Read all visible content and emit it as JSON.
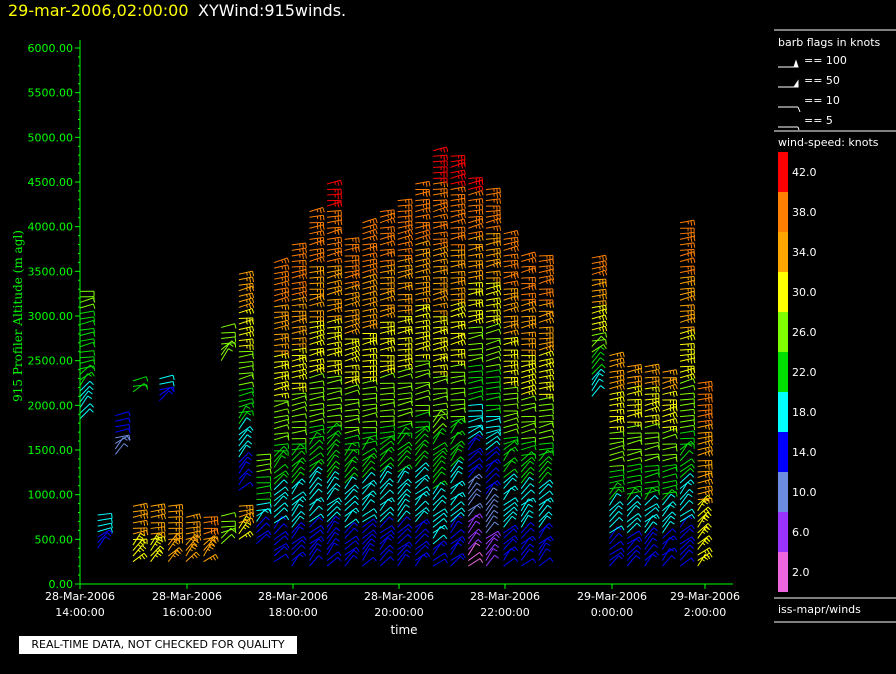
{
  "header": {
    "datetime": "29-mar-2006,02:00:00",
    "title": "XYWind:915winds."
  },
  "disclaimer": "REAL-TIME DATA, NOT CHECKED FOR QUALITY",
  "legend": {
    "barb_title": "barb flags in knots",
    "barbs": [
      {
        "label": "== 100",
        "knots": 100
      },
      {
        "label": "== 50",
        "knots": 50
      },
      {
        "label": "== 10",
        "knots": 10
      },
      {
        "label": "== 5",
        "knots": 5
      }
    ],
    "speed_title": "wind-speed: knots",
    "source": "iss-mapr/winds"
  },
  "colors": {
    "axis": "#00ff00",
    "background": "#000000",
    "speed_scale": [
      "#ff0000",
      "#ff7f00",
      "#ffa500",
      "#ffff00",
      "#80ff00",
      "#00e000",
      "#00ffff",
      "#0000ff",
      "#6b8ce0",
      "#9933ff",
      "#ee66dd"
    ]
  },
  "chart_data": {
    "type": "wind-barb profile",
    "xlabel": "time",
    "ylabel": "915 Profiler Altitude (m agl)",
    "ylim": [
      0,
      6200
    ],
    "yticks": [
      "0.00",
      "500.00",
      "1000.00",
      "1500.00",
      "2000.00",
      "2500.00",
      "3000.00",
      "3500.00",
      "4000.00",
      "4500.00",
      "5000.00",
      "5500.00",
      "6000.00"
    ],
    "xlim": [
      "28-Mar-2006 14:00:00",
      "29-Mar-2006 02:20:00"
    ],
    "xticks": [
      {
        "date": "28-Mar-2006",
        "time": "14:00:00"
      },
      {
        "date": "28-Mar-2006",
        "time": "16:00:00"
      },
      {
        "date": "28-Mar-2006",
        "time": "18:00:00"
      },
      {
        "date": "28-Mar-2006",
        "time": "20:00:00"
      },
      {
        "date": "28-Mar-2006",
        "time": "22:00:00"
      },
      {
        "date": "29-Mar-2006",
        "time": "0:00:00"
      },
      {
        "date": "29-Mar-2006",
        "time": "2:00:00"
      }
    ],
    "colorbar": [
      {
        "label": "42.0",
        "color": "#ff0000"
      },
      {
        "label": "38.0",
        "color": "#ff7f00"
      },
      {
        "label": "34.0",
        "color": "#ffa500"
      },
      {
        "label": "30.0",
        "color": "#ffff00"
      },
      {
        "label": "26.0",
        "color": "#80ff00"
      },
      {
        "label": "22.0",
        "color": "#00e000"
      },
      {
        "label": "18.0",
        "color": "#00ffff"
      },
      {
        "label": "14.0",
        "color": "#0000ff"
      },
      {
        "label": "10.0",
        "color": "#6b8ce0"
      },
      {
        "label": "6.0",
        "color": "#9933ff"
      },
      {
        "label": "2.0",
        "color": "#ee66dd"
      }
    ],
    "profiles": [
      {
        "time": "14:00",
        "bottom": 1850,
        "top": 3300,
        "low_speed": 20,
        "high_speed": 27
      },
      {
        "time": "14:20",
        "bottom": 400,
        "top": 800,
        "low_speed": 16,
        "high_speed": 20
      },
      {
        "time": "14:40",
        "bottom": 1450,
        "top": 1900,
        "low_speed": 10,
        "high_speed": 18
      },
      {
        "time": "15:00",
        "bottom": 250,
        "top": 900,
        "low_speed": 32,
        "high_speed": 36
      },
      {
        "time": "15:00",
        "bottom": 2150,
        "top": 2300,
        "low_speed": 24,
        "high_speed": 26
      },
      {
        "time": "15:20",
        "bottom": 250,
        "top": 900,
        "low_speed": 32,
        "high_speed": 36
      },
      {
        "time": "15:30",
        "bottom": 2050,
        "top": 2300,
        "low_speed": 16,
        "high_speed": 19
      },
      {
        "time": "15:40",
        "bottom": 250,
        "top": 900,
        "low_speed": 36,
        "high_speed": 38
      },
      {
        "time": "16:00",
        "bottom": 250,
        "top": 800,
        "low_speed": 36,
        "high_speed": 38
      },
      {
        "time": "16:20",
        "bottom": 250,
        "top": 800,
        "low_speed": 36,
        "high_speed": 40
      },
      {
        "time": "16:40",
        "bottom": 450,
        "top": 800,
        "low_speed": 26,
        "high_speed": 30
      },
      {
        "time": "16:40",
        "bottom": 2500,
        "top": 2900,
        "low_speed": 26,
        "high_speed": 30
      },
      {
        "time": "17:00",
        "bottom": 500,
        "top": 900,
        "low_speed": 32,
        "high_speed": 36
      },
      {
        "time": "17:00",
        "bottom": 1050,
        "top": 3500,
        "low_speed": 14,
        "high_speed": 38
      },
      {
        "time": "17:20",
        "bottom": 450,
        "top": 1500,
        "low_speed": 14,
        "high_speed": 30
      },
      {
        "time": "17:40",
        "bottom": 250,
        "top": 3650,
        "low_speed": 14,
        "high_speed": 42
      },
      {
        "time": "18:00",
        "bottom": 200,
        "top": 3800,
        "low_speed": 14,
        "high_speed": 42
      },
      {
        "time": "18:20",
        "bottom": 200,
        "top": 4200,
        "low_speed": 14,
        "high_speed": 42
      },
      {
        "time": "18:40",
        "bottom": 200,
        "top": 4500,
        "low_speed": 14,
        "high_speed": 44
      },
      {
        "time": "19:00",
        "bottom": 200,
        "top": 3900,
        "low_speed": 14,
        "high_speed": 42
      },
      {
        "time": "19:20",
        "bottom": 200,
        "top": 4050,
        "low_speed": 14,
        "high_speed": 42
      },
      {
        "time": "19:40",
        "bottom": 200,
        "top": 4200,
        "low_speed": 14,
        "high_speed": 42
      },
      {
        "time": "20:00",
        "bottom": 200,
        "top": 4300,
        "low_speed": 14,
        "high_speed": 42
      },
      {
        "time": "20:20",
        "bottom": 200,
        "top": 4500,
        "low_speed": 14,
        "high_speed": 42
      },
      {
        "time": "20:40",
        "bottom": 200,
        "top": 4850,
        "low_speed": 16,
        "high_speed": 44
      },
      {
        "time": "21:00",
        "bottom": 200,
        "top": 4800,
        "low_speed": 14,
        "high_speed": 44
      },
      {
        "time": "21:20",
        "bottom": 200,
        "top": 4600,
        "low_speed": 4,
        "high_speed": 44
      },
      {
        "time": "21:40",
        "bottom": 200,
        "top": 4450,
        "low_speed": 6,
        "high_speed": 42
      },
      {
        "time": "22:00",
        "bottom": 200,
        "top": 3950,
        "low_speed": 14,
        "high_speed": 42
      },
      {
        "time": "22:20",
        "bottom": 200,
        "top": 3700,
        "low_speed": 14,
        "high_speed": 42
      },
      {
        "time": "22:40",
        "bottom": 200,
        "top": 3700,
        "low_speed": 14,
        "high_speed": 42
      },
      {
        "time": "23:40",
        "bottom": 2100,
        "top": 3700,
        "low_speed": 18,
        "high_speed": 42
      },
      {
        "time": "0:00",
        "bottom": 200,
        "top": 2600,
        "low_speed": 14,
        "high_speed": 38
      },
      {
        "time": "0:20",
        "bottom": 200,
        "top": 2450,
        "low_speed": 14,
        "high_speed": 36
      },
      {
        "time": "0:40",
        "bottom": 200,
        "top": 2450,
        "low_speed": 14,
        "high_speed": 36
      },
      {
        "time": "1:00",
        "bottom": 200,
        "top": 2400,
        "low_speed": 14,
        "high_speed": 36
      },
      {
        "time": "1:20",
        "bottom": 200,
        "top": 4050,
        "low_speed": 14,
        "high_speed": 42
      },
      {
        "time": "1:40",
        "bottom": 200,
        "top": 2250,
        "low_speed": 30,
        "high_speed": 40
      }
    ]
  }
}
